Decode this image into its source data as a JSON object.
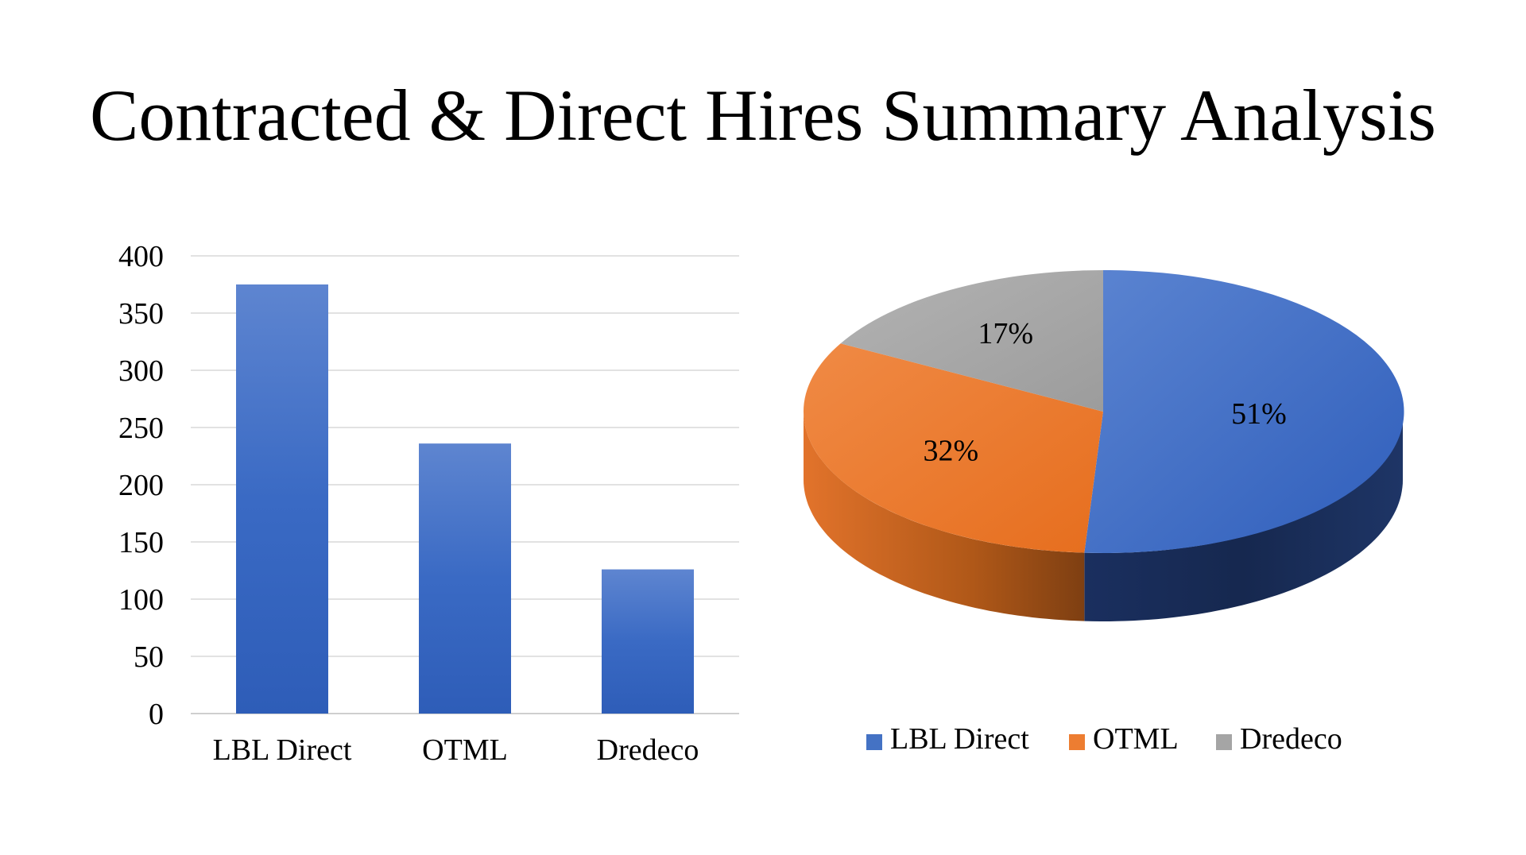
{
  "slide": {
    "title": "Contracted & Direct Hires Summary Analysis"
  },
  "colors": {
    "lbl_direct": "#4472C4",
    "otml": "#ED7D31",
    "dredeco": "#A5A5A5",
    "gridline": "#D9D9D9"
  },
  "chart_data": [
    {
      "type": "bar",
      "categories": [
        "LBL Direct",
        "OTML",
        "Dredeco"
      ],
      "values": [
        375,
        236,
        126
      ],
      "ylim": [
        0,
        400
      ],
      "yticks": [
        0,
        50,
        100,
        150,
        200,
        250,
        300,
        350,
        400
      ],
      "grid": true,
      "title": "",
      "xlabel": "",
      "ylabel": ""
    },
    {
      "type": "pie",
      "style": "3d",
      "labels": [
        "LBL Direct",
        "OTML",
        "Dredeco"
      ],
      "values": [
        51,
        32,
        17
      ],
      "data_labels": [
        "51%",
        "32%",
        "17%"
      ],
      "legend": "bottom",
      "title": ""
    }
  ]
}
